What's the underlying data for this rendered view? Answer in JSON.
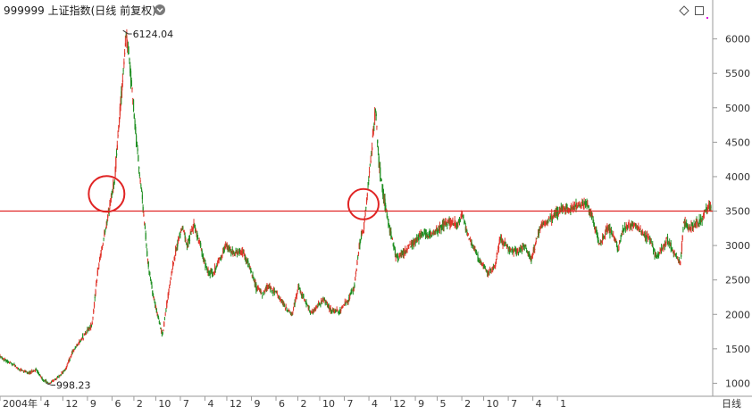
{
  "header": {
    "title": "999999 上证指数(日线 前复权)",
    "dropdown_icon": "chevron-down-circle-icon",
    "diamond_icon": "diamond-icon",
    "square_icon": "square-icon"
  },
  "colors": {
    "up": "#e0352b",
    "down": "#1f8f22",
    "hline": "#e02424",
    "circle": "#e02424",
    "grid": "#dcdcdc",
    "axis": "#9a9a9a",
    "background": "#ffffff",
    "magenta_mark": "#e000e0"
  },
  "chart_data": {
    "type": "candlestick",
    "period_label": "日线",
    "ylim": [
      850,
      6280
    ],
    "y_ticks": [
      1000,
      1500,
      2000,
      2500,
      3000,
      3500,
      4000,
      4500,
      5000,
      5500,
      6000
    ],
    "x_ticks": [
      "2004年",
      "4",
      "12",
      "9",
      "6",
      "2",
      "10",
      "7",
      "4",
      "12",
      "9",
      "6",
      "2",
      "10",
      "7",
      "4",
      "12",
      "9",
      "5",
      "2",
      "10",
      "7",
      "4",
      "1"
    ],
    "grid": false,
    "horizontal_line": 3500,
    "circles": [
      {
        "date": "2007-04",
        "value": 3750
      },
      {
        "date": "2015-02",
        "value": 3600
      }
    ],
    "annotations": [
      {
        "label": "6124.04",
        "value": 6124.04,
        "date": "2007-10",
        "kind": "high"
      },
      {
        "label": "998.23",
        "value": 998.23,
        "date": "2005-06",
        "kind": "low"
      }
    ],
    "series": [
      {
        "values": [
          [
            2004.0,
            1380
          ],
          [
            2004.3,
            1300
          ],
          [
            2004.6,
            1200
          ],
          [
            2004.9,
            1150
          ],
          [
            2005.1,
            1200
          ],
          [
            2005.3,
            1050
          ],
          [
            2005.5,
            1000
          ],
          [
            2005.8,
            1100
          ],
          [
            2006.0,
            1200
          ],
          [
            2006.2,
            1450
          ],
          [
            2006.5,
            1650
          ],
          [
            2006.8,
            1850
          ],
          [
            2007.0,
            2700
          ],
          [
            2007.2,
            3200
          ],
          [
            2007.35,
            3600
          ],
          [
            2007.5,
            4000
          ],
          [
            2007.7,
            5200
          ],
          [
            2007.85,
            6100
          ],
          [
            2008.0,
            5400
          ],
          [
            2008.2,
            4300
          ],
          [
            2008.35,
            3600
          ],
          [
            2008.5,
            2800
          ],
          [
            2008.65,
            2300
          ],
          [
            2008.8,
            2000
          ],
          [
            2008.95,
            1700
          ],
          [
            2009.1,
            2200
          ],
          [
            2009.3,
            2800
          ],
          [
            2009.55,
            3300
          ],
          [
            2009.7,
            3000
          ],
          [
            2009.9,
            3300
          ],
          [
            2010.1,
            3000
          ],
          [
            2010.3,
            2650
          ],
          [
            2010.5,
            2600
          ],
          [
            2010.7,
            2800
          ],
          [
            2010.9,
            3000
          ],
          [
            2011.1,
            2900
          ],
          [
            2011.4,
            2900
          ],
          [
            2011.6,
            2700
          ],
          [
            2011.8,
            2400
          ],
          [
            2012.0,
            2300
          ],
          [
            2012.2,
            2400
          ],
          [
            2012.45,
            2300
          ],
          [
            2012.7,
            2100
          ],
          [
            2012.9,
            2000
          ],
          [
            2013.1,
            2400
          ],
          [
            2013.3,
            2200
          ],
          [
            2013.5,
            2000
          ],
          [
            2013.7,
            2150
          ],
          [
            2013.9,
            2200
          ],
          [
            2014.1,
            2050
          ],
          [
            2014.35,
            2050
          ],
          [
            2014.6,
            2200
          ],
          [
            2014.8,
            2400
          ],
          [
            2014.95,
            3000
          ],
          [
            2015.1,
            3300
          ],
          [
            2015.25,
            4000
          ],
          [
            2015.45,
            5000
          ],
          [
            2015.55,
            4200
          ],
          [
            2015.7,
            3700
          ],
          [
            2015.85,
            3300
          ],
          [
            2016.0,
            3000
          ],
          [
            2016.1,
            2800
          ],
          [
            2016.3,
            2900
          ],
          [
            2016.6,
            3050
          ],
          [
            2016.9,
            3200
          ],
          [
            2017.1,
            3150
          ],
          [
            2017.4,
            3250
          ],
          [
            2017.7,
            3350
          ],
          [
            2017.95,
            3300
          ],
          [
            2018.1,
            3450
          ],
          [
            2018.3,
            3100
          ],
          [
            2018.6,
            2800
          ],
          [
            2018.9,
            2600
          ],
          [
            2019.1,
            2700
          ],
          [
            2019.25,
            3100
          ],
          [
            2019.5,
            2950
          ],
          [
            2019.8,
            2900
          ],
          [
            2020.0,
            3000
          ],
          [
            2020.2,
            2800
          ],
          [
            2020.5,
            3300
          ],
          [
            2020.7,
            3350
          ],
          [
            2020.95,
            3450
          ],
          [
            2021.1,
            3550
          ],
          [
            2021.35,
            3500
          ],
          [
            2021.6,
            3600
          ],
          [
            2021.9,
            3580
          ],
          [
            2022.05,
            3400
          ],
          [
            2022.3,
            3000
          ],
          [
            2022.5,
            3250
          ],
          [
            2022.7,
            3150
          ],
          [
            2022.85,
            2950
          ],
          [
            2023.0,
            3250
          ],
          [
            2023.3,
            3300
          ],
          [
            2023.55,
            3200
          ],
          [
            2023.8,
            3100
          ],
          [
            2024.0,
            2850
          ],
          [
            2024.15,
            2900
          ],
          [
            2024.35,
            3100
          ],
          [
            2024.6,
            2850
          ],
          [
            2024.75,
            2750
          ],
          [
            2024.85,
            3350
          ],
          [
            2025.0,
            3250
          ],
          [
            2025.2,
            3300
          ],
          [
            2025.4,
            3400
          ],
          [
            2025.6,
            3580
          ]
        ]
      }
    ]
  }
}
